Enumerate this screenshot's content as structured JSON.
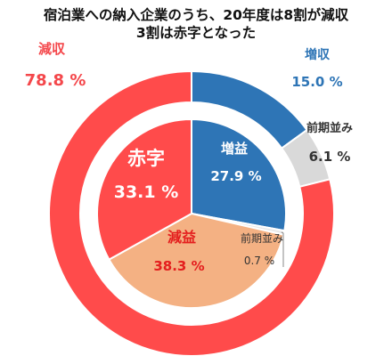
{
  "chart_data": [
    {
      "type": "pie",
      "ring": "outer",
      "title_lines": [
        "宿泊業への納入企業のうち、20年度は8割が減収",
        "3割は赤字となった"
      ],
      "slices": [
        {
          "label": "増収",
          "value": 15.0,
          "display": "15.0 %",
          "color": "#2E75B6"
        },
        {
          "label": "前期並み",
          "value": 6.1,
          "display": "6.1 %",
          "color": "#D9D9D9"
        },
        {
          "label": "減収",
          "value": 78.8,
          "display": "78.8 %",
          "color": "#FF4B4B"
        }
      ]
    },
    {
      "type": "pie",
      "ring": "inner",
      "slices": [
        {
          "label": "増益",
          "value": 27.9,
          "display": "27.9 %",
          "color": "#2E75B6"
        },
        {
          "label": "前期並み",
          "value": 0.7,
          "display": "0.7 %",
          "color": "#E8E8E8"
        },
        {
          "label": "減益",
          "value": 38.3,
          "display": "38.3 %",
          "color": "#F4B183"
        },
        {
          "label": "赤字",
          "value": 33.1,
          "display": "33.1 %",
          "color": "#FF4B4B"
        }
      ]
    }
  ]
}
